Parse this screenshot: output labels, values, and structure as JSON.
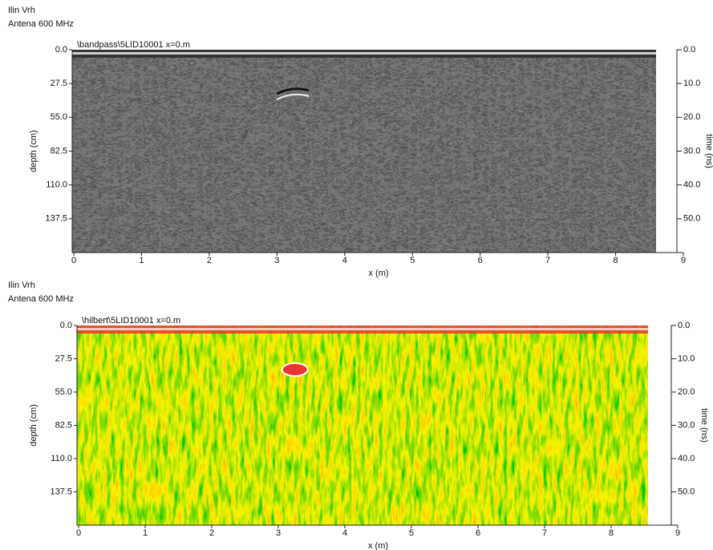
{
  "chart_data": [
    {
      "type": "radargram",
      "title": "Ilin Vrh",
      "subtitle": "Antena 600 MHz",
      "header": "\\bandpass\\5LID10001   x=0.m",
      "palette": "gray",
      "xlabel": "x (m)",
      "ylabel": "depth (cm)",
      "y2label": "time (ns)",
      "xlim": [
        0,
        9
      ],
      "xticks": [
        0,
        1,
        2,
        3,
        4,
        5,
        6,
        7,
        8,
        9
      ],
      "ylim": [
        0,
        165
      ],
      "yticks": [
        {
          "value": 0,
          "label": "0.0"
        },
        27.5,
        {
          "value": 55,
          "label": "55.0"
        },
        82.5,
        {
          "value": 110,
          "label": "110.0"
        },
        137.5
      ],
      "y2lim": [
        0,
        60
      ],
      "y2ticks": [
        {
          "value": 0,
          "label": "0.0"
        },
        {
          "value": 10,
          "label": "10.0"
        },
        {
          "value": 20,
          "label": "20.0"
        },
        {
          "value": 30,
          "label": "30.0"
        },
        {
          "value": 40,
          "label": "40.0"
        },
        {
          "value": 50,
          "label": "50.0"
        }
      ]
    },
    {
      "type": "radargram",
      "title": "Ilin Vrh",
      "subtitle": "Antena 600 MHz",
      "header": "\\hilbert\\5LID10001   x=0.m",
      "palette": "heat",
      "xlabel": "x (m)",
      "ylabel": "depth (cm)",
      "y2label": "time (ns)",
      "xlim": [
        0,
        9
      ],
      "xticks": [
        0,
        1,
        2,
        3,
        4,
        5,
        6,
        7,
        8,
        9
      ],
      "ylim": [
        0,
        165
      ],
      "yticks": [
        {
          "value": 0,
          "label": "0.0"
        },
        27.5,
        {
          "value": 55,
          "label": "55.0"
        },
        82.5,
        {
          "value": 110,
          "label": "110.0"
        },
        137.5
      ],
      "y2lim": [
        0,
        60
      ],
      "y2ticks": [
        {
          "value": 0,
          "label": "0.0"
        },
        {
          "value": 10,
          "label": "10.0"
        },
        {
          "value": 20,
          "label": "20.0"
        },
        {
          "value": 30,
          "label": "30.0"
        },
        {
          "value": 40,
          "label": "40.0"
        },
        {
          "value": 50,
          "label": "50.0"
        }
      ]
    }
  ]
}
